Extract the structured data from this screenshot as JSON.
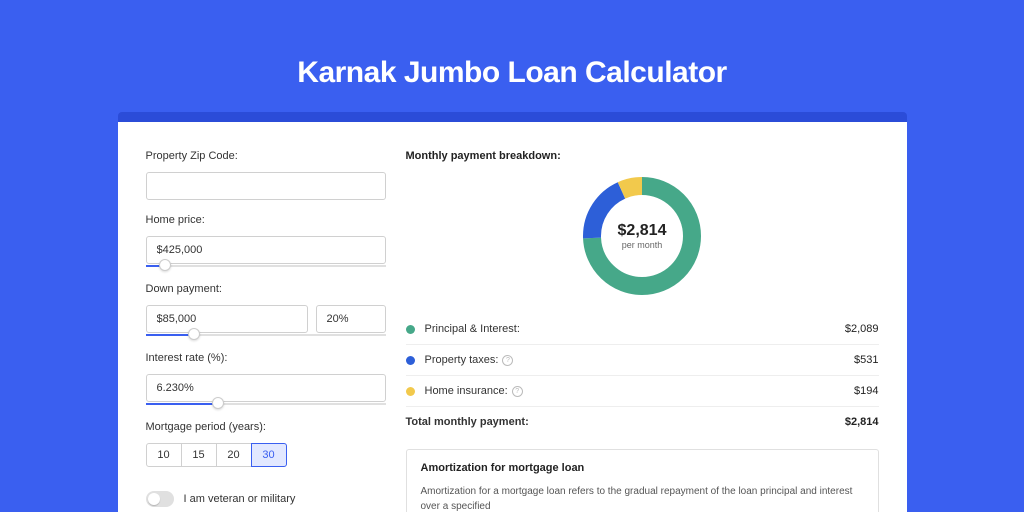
{
  "page": {
    "title": "Karnak Jumbo Loan Calculator",
    "bg_color": "#3a5ff0",
    "outer_card_color": "#2b4cd8"
  },
  "inputs": {
    "zip": {
      "label": "Property Zip Code:",
      "value": ""
    },
    "home_price": {
      "label": "Home price:",
      "value": "$425,000",
      "slider_pct": 8
    },
    "down_payment": {
      "label": "Down payment:",
      "amount": "$85,000",
      "pct": "20%",
      "slider_pct": 20
    },
    "interest_rate": {
      "label": "Interest rate (%):",
      "value": "6.230%",
      "slider_pct": 30
    },
    "mortgage_period": {
      "label": "Mortgage period (years):",
      "options": [
        "10",
        "15",
        "20",
        "30"
      ],
      "selected": "30"
    },
    "veteran": {
      "label": "I am veteran or military",
      "checked": false
    }
  },
  "breakdown": {
    "title": "Monthly payment breakdown:",
    "donut": {
      "center_value": "$2,814",
      "center_label": "per month",
      "slices": [
        {
          "label": "Principal & Interest:",
          "value": 2089,
          "display": "$2,089",
          "color": "#46a889"
        },
        {
          "label": "Property taxes:",
          "value": 531,
          "display": "$531",
          "color": "#2d5fd8",
          "has_info": true
        },
        {
          "label": "Home insurance:",
          "value": 194,
          "display": "$194",
          "color": "#f2c94c",
          "has_info": true
        }
      ],
      "ring_thickness": 18,
      "diameter": 120
    },
    "total": {
      "label": "Total monthly payment:",
      "display": "$2,814"
    }
  },
  "amortization": {
    "title": "Amortization for mortgage loan",
    "text": "Amortization for a mortgage loan refers to the gradual repayment of the loan principal and interest over a specified"
  }
}
